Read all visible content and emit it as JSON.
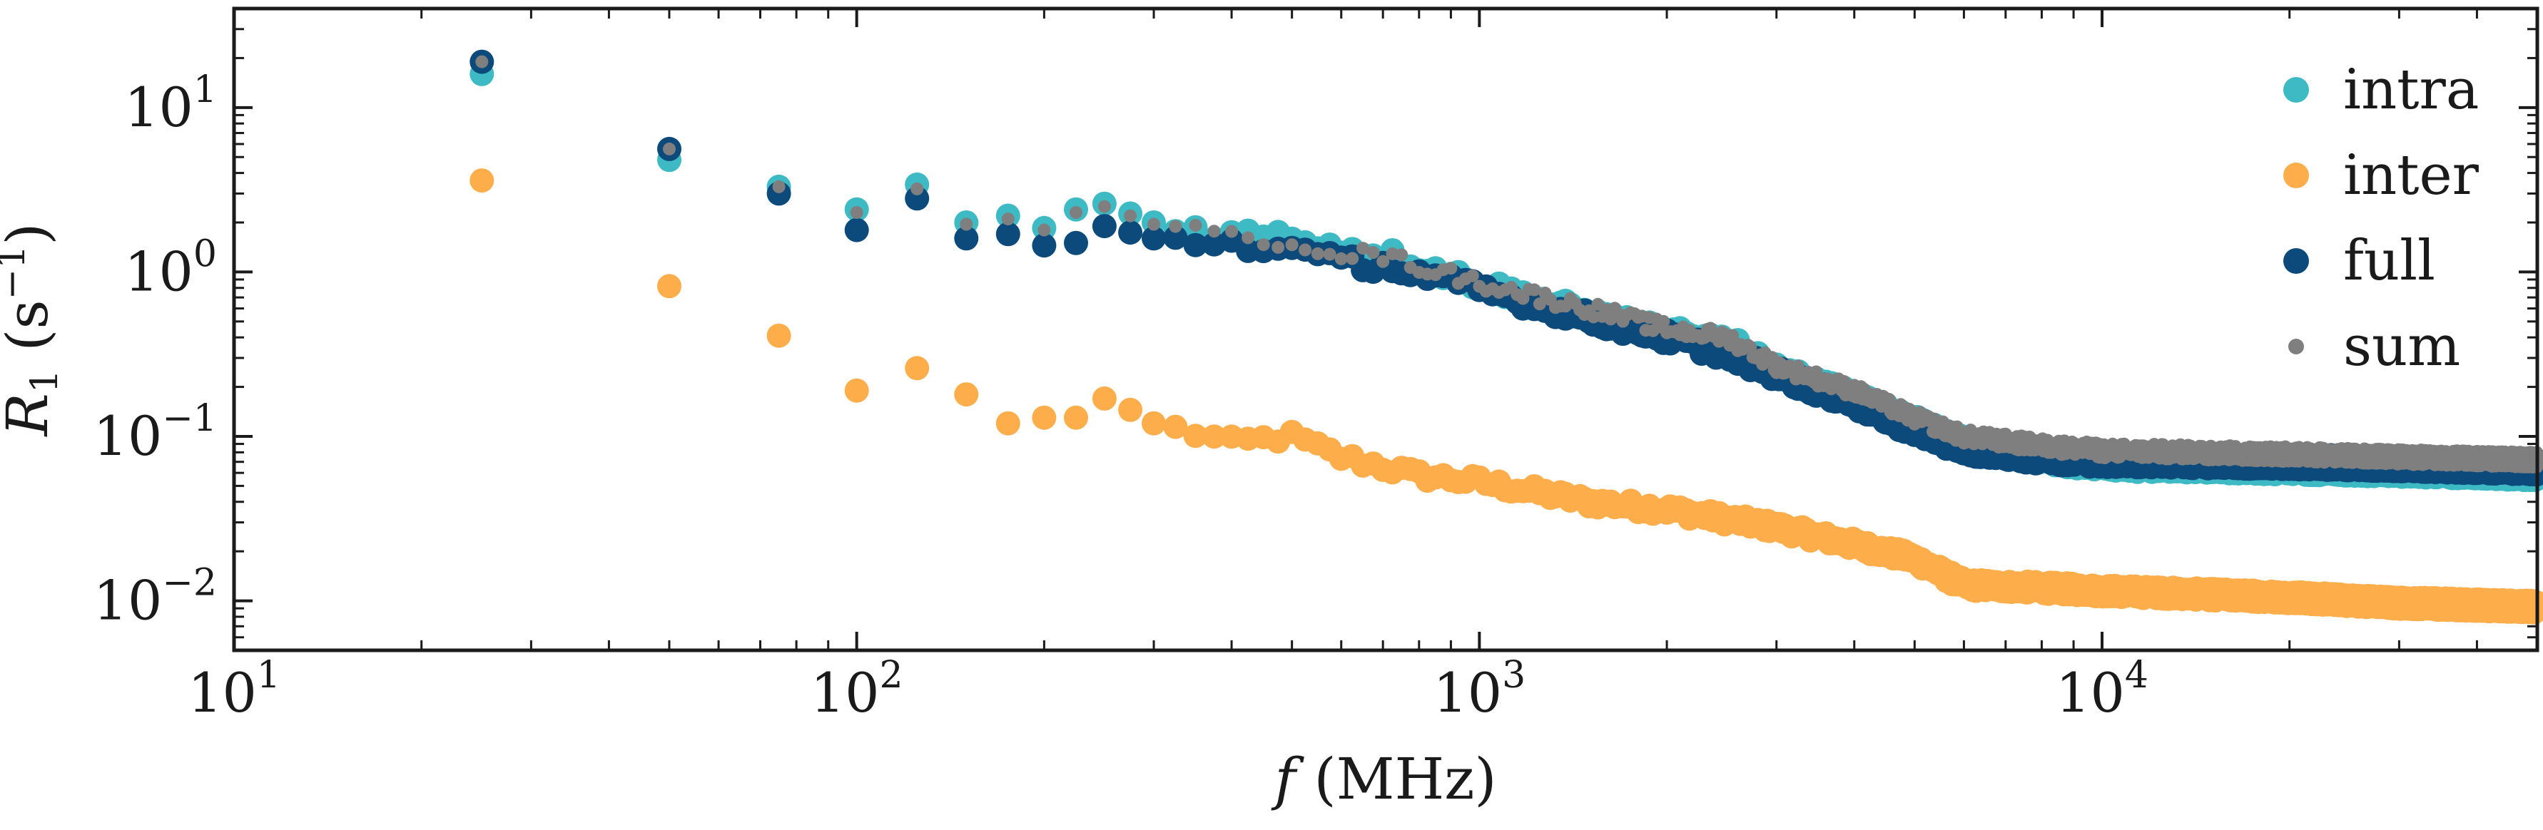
{
  "chart_data": {
    "type": "scatter",
    "x_scale": "log",
    "y_scale": "log",
    "xlim": [
      10,
      50000
    ],
    "ylim": [
      0.005,
      40
    ],
    "x_tick_values": [
      10,
      100,
      1000,
      10000
    ],
    "y_tick_values": [
      0.01,
      0.1,
      1,
      10
    ],
    "x_tick_labels": [
      {
        "base": "10",
        "exp": "1"
      },
      {
        "base": "10",
        "exp": "2"
      },
      {
        "base": "10",
        "exp": "3"
      },
      {
        "base": "10",
        "exp": "4"
      }
    ],
    "y_tick_labels": [
      {
        "base": "10",
        "exp": "−2"
      },
      {
        "base": "10",
        "exp": "−1"
      },
      {
        "base": "10",
        "exp": "0"
      },
      {
        "base": "10",
        "exp": "1"
      }
    ],
    "xlabel": {
      "symbol": "f",
      "unit": " (MHz)"
    },
    "ylabel": {
      "symbol": "R",
      "sub": "1",
      "unit_open": " (s",
      "unit_exp": "−1",
      "unit_close": ")"
    },
    "legend_position": "top-right",
    "grid": false,
    "series": [
      {
        "name": "intra",
        "color": "#3dbac4",
        "marker": "large-dot",
        "anchors": [
          [
            25,
            16
          ],
          [
            50,
            4.8
          ],
          [
            75,
            3.3
          ],
          [
            100,
            2.4
          ],
          [
            125,
            3.4
          ],
          [
            150,
            2.0
          ],
          [
            175,
            2.2
          ],
          [
            200,
            1.85
          ],
          [
            225,
            2.4
          ],
          [
            250,
            2.6
          ],
          [
            300,
            2.0
          ],
          [
            400,
            1.7
          ],
          [
            500,
            1.65
          ],
          [
            600,
            1.4
          ],
          [
            700,
            1.3
          ],
          [
            1000,
            0.85
          ],
          [
            1500,
            0.55
          ],
          [
            2000,
            0.42
          ],
          [
            2500,
            0.38
          ],
          [
            3000,
            0.25
          ],
          [
            4000,
            0.17
          ],
          [
            5000,
            0.12
          ],
          [
            6000,
            0.09
          ],
          [
            8000,
            0.075
          ],
          [
            10000,
            0.068
          ],
          [
            20000,
            0.065
          ],
          [
            30000,
            0.063
          ],
          [
            50000,
            0.06
          ]
        ]
      },
      {
        "name": "inter",
        "color": "#fdae4b",
        "marker": "large-dot",
        "anchors": [
          [
            25,
            3.6
          ],
          [
            50,
            0.82
          ],
          [
            75,
            0.41
          ],
          [
            100,
            0.19
          ],
          [
            125,
            0.26
          ],
          [
            150,
            0.18
          ],
          [
            175,
            0.12
          ],
          [
            200,
            0.13
          ],
          [
            225,
            0.13
          ],
          [
            250,
            0.17
          ],
          [
            275,
            0.145
          ],
          [
            300,
            0.12
          ],
          [
            400,
            0.092
          ],
          [
            500,
            0.1
          ],
          [
            600,
            0.075
          ],
          [
            800,
            0.058
          ],
          [
            1000,
            0.053
          ],
          [
            1500,
            0.04
          ],
          [
            2000,
            0.036
          ],
          [
            3000,
            0.028
          ],
          [
            4000,
            0.022
          ],
          [
            5000,
            0.018
          ],
          [
            6000,
            0.0125
          ],
          [
            8000,
            0.012
          ],
          [
            10000,
            0.0115
          ],
          [
            20000,
            0.0105
          ],
          [
            30000,
            0.0097
          ],
          [
            50000,
            0.0092
          ]
        ]
      },
      {
        "name": "full",
        "color": "#0c4a7c",
        "marker": "large-dot",
        "anchors": [
          [
            25,
            19
          ],
          [
            50,
            5.6
          ],
          [
            75,
            3.0
          ],
          [
            100,
            1.8
          ],
          [
            125,
            2.8
          ],
          [
            150,
            1.6
          ],
          [
            175,
            1.7
          ],
          [
            200,
            1.45
          ],
          [
            225,
            1.5
          ],
          [
            250,
            1.9
          ],
          [
            300,
            1.6
          ],
          [
            400,
            1.5
          ],
          [
            500,
            1.35
          ],
          [
            600,
            1.15
          ],
          [
            700,
            1.1
          ],
          [
            1000,
            0.78
          ],
          [
            1500,
            0.52
          ],
          [
            2000,
            0.4
          ],
          [
            2500,
            0.32
          ],
          [
            3000,
            0.24
          ],
          [
            4000,
            0.16
          ],
          [
            5000,
            0.11
          ],
          [
            6000,
            0.085
          ],
          [
            8000,
            0.075
          ],
          [
            10000,
            0.072
          ],
          [
            20000,
            0.07
          ],
          [
            30000,
            0.068
          ],
          [
            50000,
            0.065
          ]
        ]
      },
      {
        "name": "sum",
        "color": "#7f7f7f",
        "marker": "small-dot",
        "anchors": [
          [
            25,
            19
          ],
          [
            50,
            5.6
          ],
          [
            75,
            3.3
          ],
          [
            100,
            2.3
          ],
          [
            125,
            3.2
          ],
          [
            150,
            1.95
          ],
          [
            175,
            2.1
          ],
          [
            200,
            1.8
          ],
          [
            225,
            2.3
          ],
          [
            250,
            2.5
          ],
          [
            300,
            1.95
          ],
          [
            400,
            1.6
          ],
          [
            500,
            1.55
          ],
          [
            600,
            1.3
          ],
          [
            700,
            1.25
          ],
          [
            1000,
            0.86
          ],
          [
            1500,
            0.6
          ],
          [
            2000,
            0.45
          ],
          [
            2500,
            0.4
          ],
          [
            3000,
            0.27
          ],
          [
            4000,
            0.19
          ],
          [
            5000,
            0.13
          ],
          [
            6000,
            0.1
          ],
          [
            8000,
            0.088
          ],
          [
            10000,
            0.082
          ],
          [
            20000,
            0.078
          ],
          [
            30000,
            0.075
          ],
          [
            50000,
            0.072
          ]
        ]
      }
    ]
  }
}
